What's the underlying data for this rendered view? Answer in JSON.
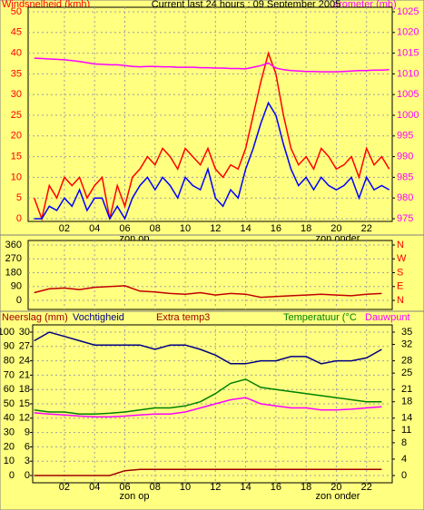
{
  "chart_data": [
    {
      "type": "line",
      "title": "Current last 24 hours : 09 September 2005",
      "y_label": "Windsnelheid (kmh)",
      "y2_label": "arometer (mb)",
      "annotations": [
        "zon op",
        "zon onder"
      ],
      "x": [
        0,
        0.5,
        1,
        1.5,
        2,
        2.5,
        3,
        3.5,
        4,
        4.5,
        5,
        5.5,
        6,
        6.5,
        7,
        7.5,
        8,
        8.5,
        9,
        9.5,
        10,
        10.5,
        11,
        11.5,
        12,
        12.5,
        13,
        13.5,
        14,
        14.5,
        15,
        15.5,
        16,
        16.5,
        17,
        17.5,
        18,
        18.5,
        19,
        19.5,
        20,
        20.5,
        21,
        21.5,
        22,
        22.5,
        23,
        23.5
      ],
      "xlim": [
        -0.4,
        23.7
      ],
      "xticks": [
        {
          "value": 2,
          "label": "02"
        },
        {
          "value": 4,
          "label": "04"
        },
        {
          "value": 6,
          "label": "06"
        },
        {
          "value": 8,
          "label": "08"
        },
        {
          "value": 10,
          "label": "10"
        },
        {
          "value": 12,
          "label": "12"
        },
        {
          "value": 14,
          "label": "14"
        },
        {
          "value": 16,
          "label": "16"
        },
        {
          "value": 18,
          "label": "18"
        },
        {
          "value": 20,
          "label": "20"
        },
        {
          "value": 22,
          "label": "22"
        }
      ],
      "ylim": [
        0,
        50
      ],
      "yticks": [
        0,
        5,
        10,
        15,
        20,
        25,
        30,
        35,
        40,
        45,
        50
      ],
      "y2lim": [
        975,
        1025
      ],
      "y2ticks": [
        975,
        980,
        985,
        990,
        995,
        1000,
        1005,
        1010,
        1015,
        1020,
        1025
      ],
      "grid": true,
      "series": [
        {
          "color": "#ff0000",
          "values": [
            5,
            0,
            8,
            5,
            10,
            8,
            10,
            5,
            8,
            10,
            0,
            8,
            3,
            10,
            12,
            15,
            13,
            17,
            15,
            12,
            17,
            15,
            13,
            17,
            12,
            10,
            13,
            12,
            17,
            25,
            33,
            40,
            35,
            25,
            17,
            13,
            15,
            12,
            17,
            15,
            12,
            13,
            15,
            10,
            17,
            13,
            15,
            12
          ]
        },
        {
          "color": "#0000ff",
          "values": [
            0,
            0,
            3,
            2,
            5,
            3,
            7,
            2,
            5,
            5,
            0,
            3,
            0,
            5,
            8,
            10,
            7,
            10,
            8,
            5,
            10,
            8,
            7,
            12,
            5,
            3,
            7,
            5,
            12,
            17,
            23,
            28,
            25,
            18,
            12,
            8,
            10,
            7,
            10,
            8,
            7,
            8,
            10,
            5,
            10,
            7,
            8,
            7
          ]
        },
        {
          "color": "#ff00ff",
          "axis": "y2",
          "values": [
            1013.8,
            1013.7,
            1013.6,
            1013.5,
            1013.4,
            1013.2,
            1013.0,
            1012.7,
            1012.4,
            1012.3,
            1012.2,
            1012.2,
            1012.0,
            1011.8,
            1011.7,
            1011.8,
            1011.8,
            1011.7,
            1011.7,
            1011.6,
            1011.6,
            1011.6,
            1011.5,
            1011.5,
            1011.4,
            1011.4,
            1011.3,
            1011.3,
            1011.2,
            1011.6,
            1012.0,
            1012.6,
            1011.4,
            1011.0,
            1010.8,
            1010.7,
            1010.6,
            1010.6,
            1010.5,
            1010.5,
            1010.5,
            1010.6,
            1010.7,
            1010.8,
            1010.8,
            1010.9,
            1010.9,
            1011.0
          ]
        }
      ]
    },
    {
      "type": "line",
      "x": [
        0,
        1,
        2,
        3,
        4,
        5,
        6,
        7,
        8,
        9,
        10,
        11,
        12,
        13,
        14,
        15,
        16,
        17,
        18,
        19,
        20,
        21,
        22,
        23
      ],
      "xlim": [
        -0.4,
        23.7
      ],
      "xticks": [
        {
          "value": 2,
          "label": "02"
        },
        {
          "value": 4,
          "label": "04"
        },
        {
          "value": 6,
          "label": "06"
        },
        {
          "value": 8,
          "label": "08"
        },
        {
          "value": 10,
          "label": "10"
        },
        {
          "value": 12,
          "label": "12"
        },
        {
          "value": 14,
          "label": "14"
        },
        {
          "value": 16,
          "label": "16"
        },
        {
          "value": 18,
          "label": "18"
        },
        {
          "value": 20,
          "label": "20"
        },
        {
          "value": 22,
          "label": "22"
        }
      ],
      "ylim": [
        0,
        360
      ],
      "yticks": [
        0,
        90,
        180,
        270,
        360
      ],
      "y2lim": [
        0,
        360
      ],
      "y2ticks": [
        {
          "value": 0,
          "label": "N"
        },
        {
          "value": 90,
          "label": "E"
        },
        {
          "value": 180,
          "label": "S"
        },
        {
          "value": 270,
          "label": "W"
        },
        {
          "value": 360,
          "label": "N"
        }
      ],
      "grid": true,
      "series": [
        {
          "color": "#c00000",
          "values": [
            50,
            75,
            80,
            70,
            85,
            90,
            95,
            60,
            55,
            45,
            40,
            50,
            35,
            45,
            40,
            20,
            25,
            30,
            35,
            40,
            35,
            30,
            40,
            45
          ]
        }
      ]
    },
    {
      "type": "line",
      "subtitle": "Extra temp3",
      "annotations": [
        "zon op",
        "zon onder"
      ],
      "x": [
        0,
        1,
        2,
        3,
        4,
        5,
        6,
        7,
        8,
        9,
        10,
        11,
        12,
        13,
        14,
        15,
        16,
        17,
        18,
        19,
        20,
        21,
        22,
        23
      ],
      "xlim": [
        -0.4,
        23.7
      ],
      "xticks": [
        {
          "value": 2,
          "label": "02"
        },
        {
          "value": 4,
          "label": "04"
        },
        {
          "value": 6,
          "label": "06"
        },
        {
          "value": 8,
          "label": "08"
        },
        {
          "value": 10,
          "label": "10"
        },
        {
          "value": 12,
          "label": "12"
        },
        {
          "value": 14,
          "label": "14"
        },
        {
          "value": 16,
          "label": "16"
        },
        {
          "value": 18,
          "label": "18"
        },
        {
          "value": 20,
          "label": "20"
        },
        {
          "value": 22,
          "label": "22"
        }
      ],
      "ylim": [
        0,
        100
      ],
      "yticks": [
        0,
        10,
        20,
        30,
        40,
        50,
        60,
        70,
        80,
        90,
        100
      ],
      "y3lim": [
        0,
        30
      ],
      "y3ticks": [
        0,
        3,
        6,
        9,
        12,
        15,
        18,
        21,
        24,
        27,
        30
      ],
      "y2lim": [
        0,
        35
      ],
      "y2ticks": [
        0,
        4,
        8,
        11,
        14,
        18,
        21,
        25,
        28,
        32,
        35
      ],
      "grid": true,
      "series": [
        {
          "name": "Neerslag (mm)",
          "color": "#a00000",
          "axis": "y3",
          "values": [
            0,
            0,
            0,
            0,
            0,
            0,
            1,
            1.3,
            1.3,
            1.3,
            1.3,
            1.3,
            1.3,
            1.3,
            1.3,
            1.3,
            1.3,
            1.3,
            1.3,
            1.3,
            1.3,
            1.3,
            1.3,
            1.3
          ]
        },
        {
          "name": "Vochtigheid",
          "color": "#000080",
          "values": [
            94,
            100,
            97,
            94,
            91,
            91,
            91,
            91,
            88,
            91,
            91,
            88,
            84,
            78,
            78,
            80,
            80,
            83,
            83,
            78,
            80,
            80,
            82,
            88
          ]
        },
        {
          "name": "Temperatuur (°C",
          "color": "#008000",
          "axis": "y2",
          "values": [
            16,
            15.5,
            15.5,
            15,
            15,
            15.2,
            15.5,
            16,
            16.5,
            16.5,
            17,
            18,
            20,
            22.5,
            23.5,
            21.5,
            21,
            20.5,
            20,
            19.5,
            19,
            18.5,
            18,
            18
          ]
        },
        {
          "name": "Dauwpunt",
          "color": "#ff00ff",
          "axis": "y2",
          "values": [
            15.3,
            15,
            14.8,
            14.5,
            14.3,
            14.3,
            14.5,
            14.8,
            15,
            15,
            15.5,
            16.5,
            17.5,
            18.5,
            19,
            17.5,
            17,
            16.5,
            16.5,
            16,
            16,
            16.2,
            16.5,
            16.8
          ]
        }
      ]
    }
  ]
}
